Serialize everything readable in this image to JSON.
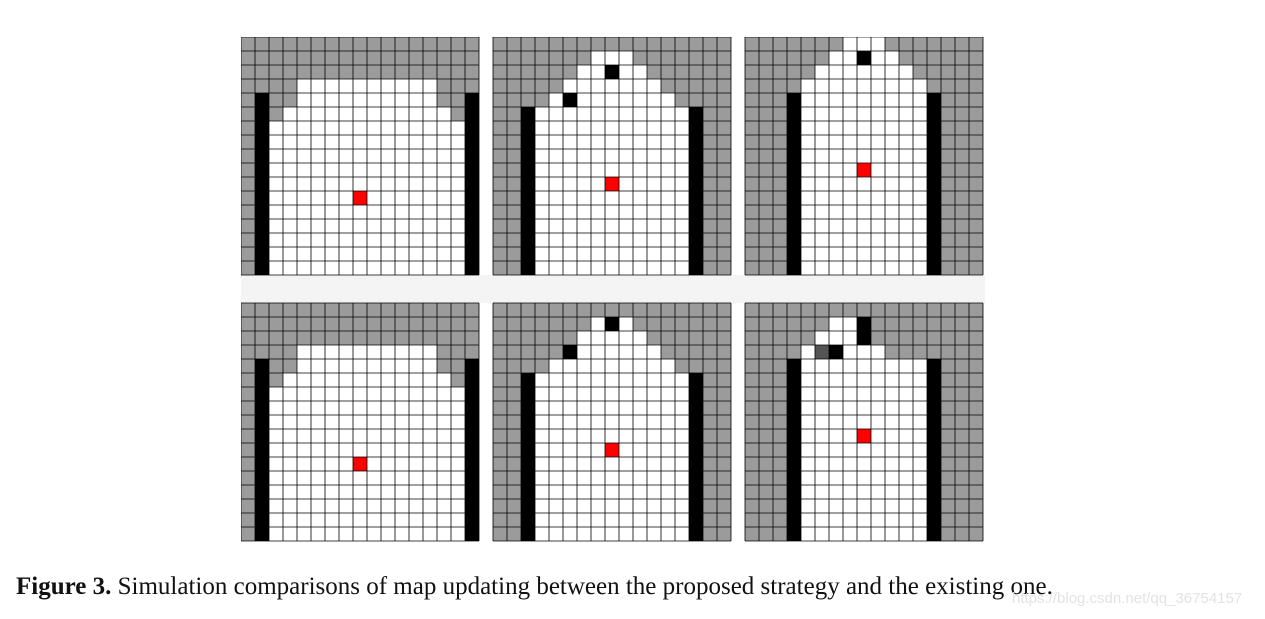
{
  "figure": {
    "caption_label": "Figure 3.",
    "caption_text": " Simulation comparisons of map updating between the proposed strategy and the existing one.",
    "watermark": "https://blog.csdn.net/qq_36754157",
    "colors": {
      "unknown": "#9b9b9b",
      "free": "#ffffff",
      "occupied": "#000000",
      "robot": "#ff0000",
      "uncertain": "#555555",
      "grid_line": "#000000"
    },
    "panels": [
      {
        "id": "top-1",
        "free_rows": [
          [
            4,
            13
          ],
          [
            4,
            13
          ],
          [
            3,
            14
          ],
          [
            2,
            15
          ],
          [
            2,
            15
          ],
          [
            2,
            15
          ],
          [
            2,
            15
          ],
          [
            2,
            15
          ],
          [
            2,
            15
          ],
          [
            2,
            15
          ],
          [
            2,
            15
          ],
          [
            2,
            15
          ],
          [
            2,
            15
          ],
          [
            2,
            15
          ]
        ],
        "black_cells": [],
        "dark_cells": [],
        "wall_left": [
          4,
          16
        ],
        "wall_right": [
          4,
          16
        ],
        "robot": [
          11,
          8
        ]
      },
      {
        "id": "top-2",
        "free_rows": [
          [
            7,
            9
          ],
          [
            6,
            10
          ],
          [
            5,
            11
          ],
          [
            4,
            12
          ],
          [
            3,
            13
          ],
          [
            3,
            13
          ],
          [
            3,
            13
          ],
          [
            3,
            13
          ],
          [
            3,
            13
          ],
          [
            3,
            13
          ],
          [
            3,
            13
          ],
          [
            3,
            13
          ],
          [
            3,
            13
          ],
          [
            3,
            13
          ],
          [
            3,
            13
          ],
          [
            3,
            13
          ]
        ],
        "black_cells": [
          [
            2,
            8
          ],
          [
            4,
            5
          ]
        ],
        "dark_cells": [],
        "wall_left": [
          5,
          16
        ],
        "wall_right": [
          5,
          16
        ],
        "robot": [
          10,
          8
        ]
      },
      {
        "id": "top-3",
        "free_rows": [
          [
            7,
            9
          ],
          [
            6,
            10
          ],
          [
            5,
            11
          ],
          [
            4,
            12
          ],
          [
            4,
            12
          ],
          [
            4,
            12
          ],
          [
            4,
            12
          ],
          [
            4,
            12
          ],
          [
            4,
            12
          ],
          [
            4,
            12
          ],
          [
            4,
            12
          ],
          [
            4,
            12
          ],
          [
            4,
            12
          ],
          [
            4,
            12
          ],
          [
            4,
            12
          ],
          [
            4,
            12
          ],
          [
            4,
            12
          ]
        ],
        "black_cells": [
          [
            1,
            8
          ]
        ],
        "dark_cells": [],
        "wall_left": [
          4,
          16
        ],
        "wall_right": [
          4,
          16
        ],
        "robot": [
          9,
          8
        ]
      },
      {
        "id": "bottom-1",
        "free_rows": [
          [
            4,
            13
          ],
          [
            4,
            13
          ],
          [
            3,
            14
          ],
          [
            2,
            15
          ],
          [
            2,
            15
          ],
          [
            2,
            15
          ],
          [
            2,
            15
          ],
          [
            2,
            15
          ],
          [
            2,
            15
          ],
          [
            2,
            15
          ],
          [
            2,
            15
          ],
          [
            2,
            15
          ],
          [
            2,
            15
          ],
          [
            2,
            15
          ]
        ],
        "black_cells": [],
        "dark_cells": [],
        "wall_left": [
          4,
          16
        ],
        "wall_right": [
          4,
          16
        ],
        "robot": [
          11,
          8
        ]
      },
      {
        "id": "bottom-2",
        "free_rows": [
          [
            7,
            9
          ],
          [
            6,
            10
          ],
          [
            5,
            11
          ],
          [
            4,
            12
          ],
          [
            3,
            13
          ],
          [
            3,
            13
          ],
          [
            3,
            13
          ],
          [
            3,
            13
          ],
          [
            3,
            13
          ],
          [
            3,
            13
          ],
          [
            3,
            13
          ],
          [
            3,
            13
          ],
          [
            3,
            13
          ],
          [
            3,
            13
          ],
          [
            3,
            13
          ],
          [
            3,
            13
          ]
        ],
        "black_cells": [
          [
            1,
            8
          ],
          [
            3,
            5
          ]
        ],
        "dark_cells": [],
        "wall_left": [
          5,
          16
        ],
        "wall_right": [
          5,
          16
        ],
        "robot": [
          10,
          8
        ]
      },
      {
        "id": "bottom-3",
        "free_rows": [
          [
            6,
            7
          ],
          [
            5,
            8
          ],
          [
            4,
            9
          ],
          [
            4,
            12
          ],
          [
            4,
            12
          ],
          [
            4,
            12
          ],
          [
            4,
            12
          ],
          [
            4,
            12
          ],
          [
            4,
            12
          ],
          [
            4,
            12
          ],
          [
            4,
            12
          ],
          [
            4,
            12
          ],
          [
            4,
            12
          ],
          [
            4,
            12
          ],
          [
            4,
            12
          ],
          [
            4,
            12
          ]
        ],
        "black_cells": [
          [
            1,
            8
          ],
          [
            2,
            8
          ],
          [
            3,
            6
          ]
        ],
        "dark_cells": [
          [
            3,
            5
          ]
        ],
        "wall_left": [
          4,
          16
        ],
        "wall_right": [
          4,
          16
        ],
        "robot": [
          9,
          8
        ]
      }
    ]
  }
}
